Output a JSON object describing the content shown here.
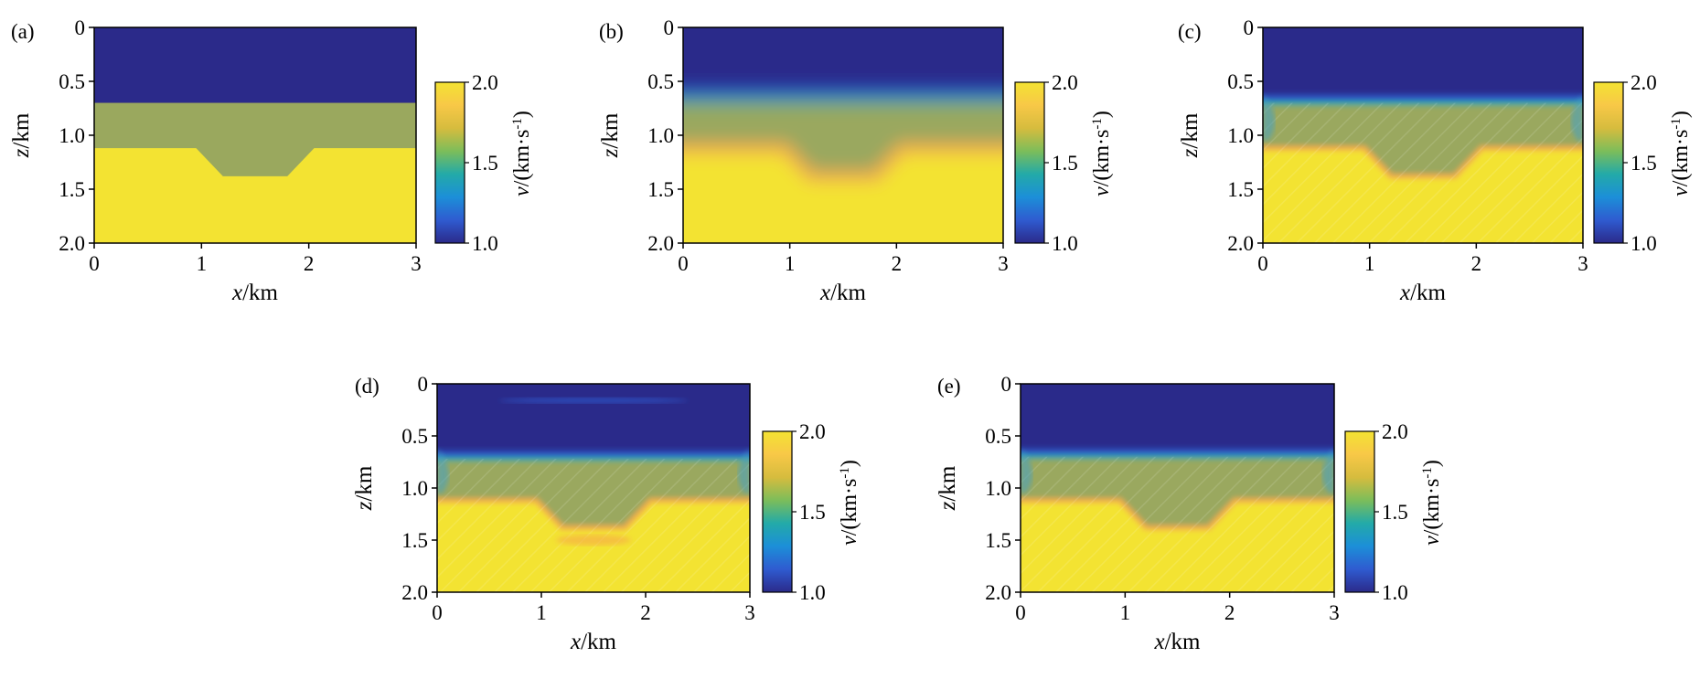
{
  "figure": {
    "panels": [
      {
        "id": "a",
        "label": "(a)"
      },
      {
        "id": "b",
        "label": "(b)"
      },
      {
        "id": "c",
        "label": "(c)"
      },
      {
        "id": "d",
        "label": "(d)"
      },
      {
        "id": "e",
        "label": "(e)"
      }
    ]
  },
  "chart_data": [
    {
      "type": "heatmap",
      "panel": "(a)",
      "xlabel_var": "x",
      "xlabel_unit": "/km",
      "ylabel_var": "z",
      "ylabel_unit": "/km",
      "xlim": [
        0,
        3
      ],
      "ylim": [
        2.0,
        0
      ],
      "x_ticks": [
        "0",
        "1",
        "2",
        "3"
      ],
      "y_ticks": [
        "0",
        "0.5",
        "1.0",
        "1.5",
        "2.0"
      ],
      "colorbar": {
        "label_var": "v",
        "label_unit": "/(km·s",
        "label_exp": "-1",
        "label_close": ")",
        "range": [
          1.0,
          2.0
        ],
        "ticks": [
          "1.0",
          "1.5",
          "2.0"
        ]
      },
      "structure": {
        "top_layer_velocity": 1.0,
        "interface_depth": 0.7,
        "middle_layer_velocity": 1.72,
        "bottom_velocity": 2.0,
        "basin_profile": {
          "x": [
            0,
            0.95,
            1.2,
            1.8,
            2.05,
            3
          ],
          "z": [
            1.12,
            1.12,
            1.38,
            1.38,
            1.12,
            1.12
          ]
        }
      },
      "smoothness": "sharp"
    },
    {
      "type": "heatmap",
      "panel": "(b)",
      "xlabel_var": "x",
      "xlabel_unit": "/km",
      "ylabel_var": "z",
      "ylabel_unit": "/km",
      "xlim": [
        0,
        3
      ],
      "ylim": [
        2.0,
        0
      ],
      "x_ticks": [
        "0",
        "1",
        "2",
        "3"
      ],
      "y_ticks": [
        "0",
        "0.5",
        "1.0",
        "1.5",
        "2.0"
      ],
      "colorbar": {
        "label_var": "v",
        "label_unit": "/(km·s",
        "label_exp": "-1",
        "label_close": ")",
        "range": [
          1.0,
          2.0
        ],
        "ticks": [
          "1.0",
          "1.5",
          "2.0"
        ]
      },
      "structure": {
        "top_layer_velocity": 1.0,
        "interface_depth": 0.7,
        "middle_layer_velocity": 1.72,
        "bottom_velocity": 2.0,
        "basin_profile": {
          "x": [
            0,
            0.95,
            1.2,
            1.8,
            2.05,
            3
          ],
          "z": [
            1.12,
            1.12,
            1.38,
            1.38,
            1.12,
            1.12
          ]
        }
      },
      "smoothness": "smoothed"
    },
    {
      "type": "heatmap",
      "panel": "(c)",
      "xlabel_var": "x",
      "xlabel_unit": "/km",
      "ylabel_var": "z",
      "ylabel_unit": "/km",
      "xlim": [
        0,
        3
      ],
      "ylim": [
        2.0,
        0
      ],
      "x_ticks": [
        "0",
        "1",
        "2",
        "3"
      ],
      "y_ticks": [
        "0",
        "0.5",
        "1.0",
        "1.5",
        "2.0"
      ],
      "colorbar": {
        "label_var": "v",
        "label_unit": "/(km·s",
        "label_exp": "-1",
        "label_close": ")",
        "range": [
          1.0,
          2.0
        ],
        "ticks": [
          "1.0",
          "1.5",
          "2.0"
        ]
      },
      "structure": {
        "top_layer_velocity": 1.0,
        "interface_depth": 0.7,
        "middle_layer_velocity": 1.72,
        "bottom_velocity": 2.0,
        "basin_profile": {
          "x": [
            0,
            0.95,
            1.2,
            1.8,
            2.05,
            3
          ],
          "z": [
            1.12,
            1.12,
            1.38,
            1.38,
            1.12,
            1.12
          ]
        }
      },
      "smoothness": "inverted"
    },
    {
      "type": "heatmap",
      "panel": "(d)",
      "xlabel_var": "x",
      "xlabel_unit": "/km",
      "ylabel_var": "z",
      "ylabel_unit": "/km",
      "xlim": [
        0,
        3
      ],
      "ylim": [
        2.0,
        0
      ],
      "x_ticks": [
        "0",
        "1",
        "2",
        "3"
      ],
      "y_ticks": [
        "0",
        "0.5",
        "1.0",
        "1.5",
        "2.0"
      ],
      "colorbar": {
        "label_var": "v",
        "label_unit": "/(km·s",
        "label_exp": "-1",
        "label_close": ")",
        "range": [
          1.0,
          2.0
        ],
        "ticks": [
          "1.0",
          "1.5",
          "2.0"
        ]
      },
      "structure": {
        "top_layer_velocity": 1.0,
        "interface_depth": 0.72,
        "middle_layer_velocity": 1.7,
        "bottom_velocity": 2.0,
        "basin_profile": {
          "x": [
            0,
            0.95,
            1.2,
            1.8,
            2.05,
            3
          ],
          "z": [
            1.12,
            1.12,
            1.38,
            1.38,
            1.12,
            1.12
          ]
        }
      },
      "smoothness": "inverted-noisy"
    },
    {
      "type": "heatmap",
      "panel": "(e)",
      "xlabel_var": "x",
      "xlabel_unit": "/km",
      "ylabel_var": "z",
      "ylabel_unit": "/km",
      "xlim": [
        0,
        3
      ],
      "ylim": [
        2.0,
        0
      ],
      "x_ticks": [
        "0",
        "1",
        "2",
        "3"
      ],
      "y_ticks": [
        "0",
        "0.5",
        "1.0",
        "1.5",
        "2.0"
      ],
      "colorbar": {
        "label_var": "v",
        "label_unit": "/(km·s",
        "label_exp": "-1",
        "label_close": ")",
        "range": [
          1.0,
          2.0
        ],
        "ticks": [
          "1.0",
          "1.5",
          "2.0"
        ]
      },
      "structure": {
        "top_layer_velocity": 1.0,
        "interface_depth": 0.7,
        "middle_layer_velocity": 1.72,
        "bottom_velocity": 2.0,
        "basin_profile": {
          "x": [
            0,
            0.95,
            1.2,
            1.8,
            2.05,
            3
          ],
          "z": [
            1.12,
            1.12,
            1.38,
            1.38,
            1.12,
            1.12
          ]
        }
      },
      "smoothness": "inverted"
    }
  ],
  "colors": {
    "low": "#2b2a8a",
    "mid": "#23aaa8",
    "middle_layer": "#9aa85e",
    "high": "#f3e332",
    "colormap": [
      "#2b2a8a",
      "#2f5bd0",
      "#1c8fd8",
      "#23aaa8",
      "#7cbd5a",
      "#d6bc3e",
      "#f8c847",
      "#f3e332"
    ]
  }
}
